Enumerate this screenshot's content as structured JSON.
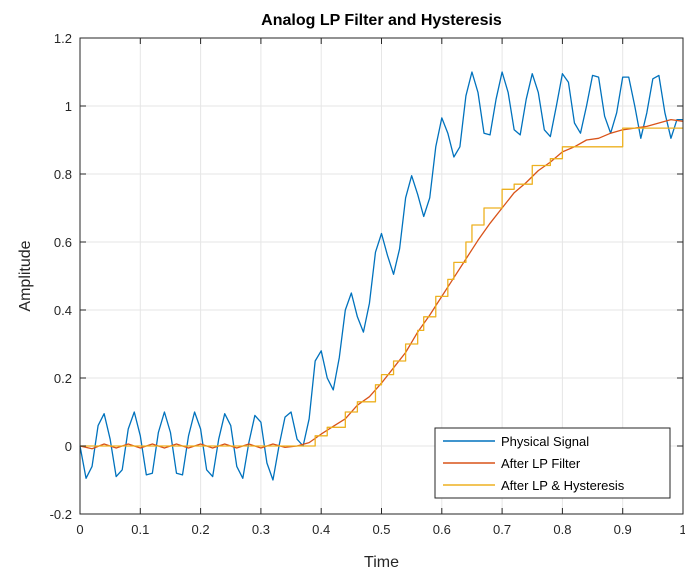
{
  "chart_data": {
    "type": "line",
    "title": "Analog LP Filter and Hysteresis",
    "xlabel": "Time",
    "ylabel": "Amplitude",
    "xlim": [
      0,
      1
    ],
    "ylim": [
      -0.2,
      1.2
    ],
    "x_ticks": [
      "0",
      "0.1",
      "0.2",
      "0.3",
      "0.4",
      "0.5",
      "0.6",
      "0.7",
      "0.8",
      "0.9",
      "1"
    ],
    "y_ticks": [
      "-0.2",
      "0",
      "0.2",
      "0.4",
      "0.6",
      "0.8",
      "1",
      "1.2"
    ],
    "grid": true,
    "legend_position": "bottom-right",
    "series": [
      {
        "name": "Physical Signal",
        "color": "#0072BD",
        "points": [
          [
            0,
            0
          ],
          [
            0.01,
            -0.095
          ],
          [
            0.02,
            -0.06
          ],
          [
            0.03,
            0.06
          ],
          [
            0.04,
            0.095
          ],
          [
            0.05,
            0.02
          ],
          [
            0.06,
            -0.09
          ],
          [
            0.07,
            -0.07
          ],
          [
            0.08,
            0.05
          ],
          [
            0.09,
            0.1
          ],
          [
            0.1,
            0.03
          ],
          [
            0.11,
            -0.085
          ],
          [
            0.12,
            -0.08
          ],
          [
            0.13,
            0.04
          ],
          [
            0.14,
            0.1
          ],
          [
            0.15,
            0.04
          ],
          [
            0.16,
            -0.08
          ],
          [
            0.17,
            -0.085
          ],
          [
            0.18,
            0.03
          ],
          [
            0.19,
            0.1
          ],
          [
            0.2,
            0.05
          ],
          [
            0.21,
            -0.07
          ],
          [
            0.22,
            -0.09
          ],
          [
            0.23,
            0.02
          ],
          [
            0.24,
            0.095
          ],
          [
            0.25,
            0.06
          ],
          [
            0.26,
            -0.06
          ],
          [
            0.27,
            -0.095
          ],
          [
            0.28,
            0.01
          ],
          [
            0.29,
            0.09
          ],
          [
            0.3,
            0.07
          ],
          [
            0.31,
            -0.05
          ],
          [
            0.32,
            -0.1
          ],
          [
            0.33,
            0.0
          ],
          [
            0.34,
            0.085
          ],
          [
            0.35,
            0.1
          ],
          [
            0.36,
            0.02
          ],
          [
            0.37,
            0.0
          ],
          [
            0.38,
            0.08
          ],
          [
            0.39,
            0.25
          ],
          [
            0.4,
            0.28
          ],
          [
            0.41,
            0.2
          ],
          [
            0.42,
            0.165
          ],
          [
            0.43,
            0.26
          ],
          [
            0.44,
            0.4
          ],
          [
            0.45,
            0.45
          ],
          [
            0.46,
            0.38
          ],
          [
            0.47,
            0.335
          ],
          [
            0.48,
            0.42
          ],
          [
            0.49,
            0.57
          ],
          [
            0.5,
            0.625
          ],
          [
            0.51,
            0.56
          ],
          [
            0.52,
            0.505
          ],
          [
            0.53,
            0.58
          ],
          [
            0.54,
            0.73
          ],
          [
            0.55,
            0.795
          ],
          [
            0.56,
            0.74
          ],
          [
            0.57,
            0.675
          ],
          [
            0.58,
            0.73
          ],
          [
            0.59,
            0.88
          ],
          [
            0.6,
            0.965
          ],
          [
            0.61,
            0.92
          ],
          [
            0.62,
            0.85
          ],
          [
            0.63,
            0.88
          ],
          [
            0.64,
            1.03
          ],
          [
            0.65,
            1.1
          ],
          [
            0.66,
            1.04
          ],
          [
            0.67,
            0.92
          ],
          [
            0.68,
            0.915
          ],
          [
            0.69,
            1.02
          ],
          [
            0.7,
            1.1
          ],
          [
            0.71,
            1.04
          ],
          [
            0.72,
            0.93
          ],
          [
            0.73,
            0.915
          ],
          [
            0.74,
            1.02
          ],
          [
            0.75,
            1.095
          ],
          [
            0.76,
            1.04
          ],
          [
            0.77,
            0.93
          ],
          [
            0.78,
            0.91
          ],
          [
            0.79,
            1.0
          ],
          [
            0.8,
            1.095
          ],
          [
            0.81,
            1.07
          ],
          [
            0.82,
            0.95
          ],
          [
            0.83,
            0.92
          ],
          [
            0.84,
            1.0
          ],
          [
            0.85,
            1.09
          ],
          [
            0.86,
            1.085
          ],
          [
            0.87,
            0.97
          ],
          [
            0.88,
            0.92
          ],
          [
            0.89,
            0.98
          ],
          [
            0.9,
            1.085
          ],
          [
            0.91,
            1.085
          ],
          [
            0.92,
            1.0
          ],
          [
            0.93,
            0.905
          ],
          [
            0.94,
            0.98
          ],
          [
            0.95,
            1.08
          ],
          [
            0.96,
            1.09
          ],
          [
            0.97,
            0.98
          ],
          [
            0.98,
            0.905
          ],
          [
            0.99,
            0.96
          ],
          [
            1.0,
            0.96
          ]
        ]
      },
      {
        "name": "After LP Filter",
        "color": "#D95319",
        "points": [
          [
            0,
            0
          ],
          [
            0.02,
            -0.008
          ],
          [
            0.04,
            0.006
          ],
          [
            0.06,
            -0.006
          ],
          [
            0.08,
            0.006
          ],
          [
            0.1,
            -0.006
          ],
          [
            0.12,
            0.006
          ],
          [
            0.14,
            -0.006
          ],
          [
            0.16,
            0.006
          ],
          [
            0.18,
            -0.006
          ],
          [
            0.2,
            0.006
          ],
          [
            0.22,
            -0.006
          ],
          [
            0.24,
            0.006
          ],
          [
            0.26,
            -0.006
          ],
          [
            0.28,
            0.006
          ],
          [
            0.3,
            -0.006
          ],
          [
            0.32,
            0.006
          ],
          [
            0.34,
            -0.004
          ],
          [
            0.36,
            0.0
          ],
          [
            0.38,
            0.01
          ],
          [
            0.4,
            0.035
          ],
          [
            0.42,
            0.058
          ],
          [
            0.44,
            0.08
          ],
          [
            0.46,
            0.12
          ],
          [
            0.48,
            0.145
          ],
          [
            0.5,
            0.185
          ],
          [
            0.52,
            0.23
          ],
          [
            0.54,
            0.275
          ],
          [
            0.56,
            0.335
          ],
          [
            0.58,
            0.385
          ],
          [
            0.6,
            0.44
          ],
          [
            0.62,
            0.495
          ],
          [
            0.64,
            0.55
          ],
          [
            0.66,
            0.605
          ],
          [
            0.68,
            0.655
          ],
          [
            0.7,
            0.7
          ],
          [
            0.72,
            0.745
          ],
          [
            0.74,
            0.775
          ],
          [
            0.76,
            0.81
          ],
          [
            0.78,
            0.835
          ],
          [
            0.8,
            0.865
          ],
          [
            0.82,
            0.88
          ],
          [
            0.84,
            0.9
          ],
          [
            0.86,
            0.905
          ],
          [
            0.88,
            0.92
          ],
          [
            0.9,
            0.93
          ],
          [
            0.92,
            0.935
          ],
          [
            0.94,
            0.94
          ],
          [
            0.96,
            0.95
          ],
          [
            0.98,
            0.96
          ],
          [
            1.0,
            0.955
          ]
        ]
      },
      {
        "name": "After LP & Hysteresis",
        "color": "#EDB120",
        "points": [
          [
            0,
            0
          ],
          [
            0.39,
            0
          ],
          [
            0.39,
            0.03
          ],
          [
            0.41,
            0.03
          ],
          [
            0.41,
            0.055
          ],
          [
            0.44,
            0.055
          ],
          [
            0.44,
            0.1
          ],
          [
            0.46,
            0.1
          ],
          [
            0.46,
            0.13
          ],
          [
            0.49,
            0.13
          ],
          [
            0.49,
            0.18
          ],
          [
            0.5,
            0.18
          ],
          [
            0.5,
            0.21
          ],
          [
            0.52,
            0.21
          ],
          [
            0.52,
            0.25
          ],
          [
            0.54,
            0.25
          ],
          [
            0.54,
            0.3
          ],
          [
            0.56,
            0.3
          ],
          [
            0.56,
            0.34
          ],
          [
            0.57,
            0.34
          ],
          [
            0.57,
            0.38
          ],
          [
            0.59,
            0.38
          ],
          [
            0.59,
            0.44
          ],
          [
            0.61,
            0.44
          ],
          [
            0.61,
            0.49
          ],
          [
            0.62,
            0.49
          ],
          [
            0.62,
            0.54
          ],
          [
            0.64,
            0.54
          ],
          [
            0.64,
            0.6
          ],
          [
            0.65,
            0.6
          ],
          [
            0.65,
            0.65
          ],
          [
            0.67,
            0.65
          ],
          [
            0.67,
            0.7
          ],
          [
            0.69,
            0.7
          ],
          [
            0.69,
            0.7
          ],
          [
            0.7,
            0.7
          ],
          [
            0.7,
            0.755
          ],
          [
            0.72,
            0.755
          ],
          [
            0.72,
            0.77
          ],
          [
            0.75,
            0.77
          ],
          [
            0.75,
            0.825
          ],
          [
            0.78,
            0.825
          ],
          [
            0.78,
            0.845
          ],
          [
            0.8,
            0.845
          ],
          [
            0.8,
            0.88
          ],
          [
            0.84,
            0.88
          ],
          [
            0.84,
            0.88
          ],
          [
            0.9,
            0.88
          ],
          [
            0.9,
            0.935
          ],
          [
            1.0,
            0.935
          ]
        ]
      }
    ]
  }
}
